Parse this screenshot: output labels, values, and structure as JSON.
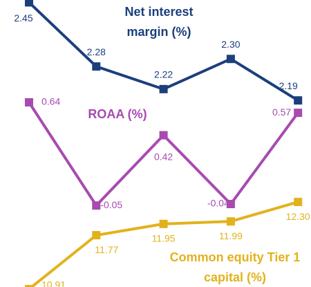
{
  "chart_data": [
    {
      "type": "line",
      "title": "Net interest margin (%)",
      "categories": [
        null,
        null,
        null,
        null,
        null
      ],
      "series": [
        {
          "name": "Net interest margin (%)",
          "color": "#1c3f7c",
          "values": [
            2.45,
            2.28,
            2.22,
            2.3,
            2.19
          ],
          "value_labels": [
            "2.45",
            "2.28",
            "2.22",
            "2.30",
            "2.19"
          ]
        }
      ],
      "ylim": [
        2.15,
        2.46
      ]
    },
    {
      "type": "line",
      "title": "ROAA (%)",
      "categories": [
        null,
        null,
        null,
        null,
        null
      ],
      "series": [
        {
          "name": "ROAA (%)",
          "color": "#a84ab0",
          "values": [
            0.64,
            -0.05,
            0.42,
            -0.04,
            0.57
          ],
          "value_labels": [
            "0.64",
            "-0.05",
            "0.42",
            "-0.04",
            "0.57"
          ]
        }
      ],
      "ylim": [
        -0.1,
        0.7
      ]
    },
    {
      "type": "line",
      "title": "Common equity Tier 1 capital (%)",
      "categories": [
        null,
        null,
        null,
        null,
        null
      ],
      "series": [
        {
          "name": "Common equity Tier 1 capital (%)",
          "color": "#e2b21c",
          "values": [
            10.91,
            11.77,
            11.95,
            11.99,
            12.3
          ],
          "value_labels": [
            "10.91",
            "11.77",
            "11.95",
            "11.99",
            "12.30"
          ]
        }
      ],
      "ylim": [
        10.8,
        12.4
      ]
    }
  ]
}
